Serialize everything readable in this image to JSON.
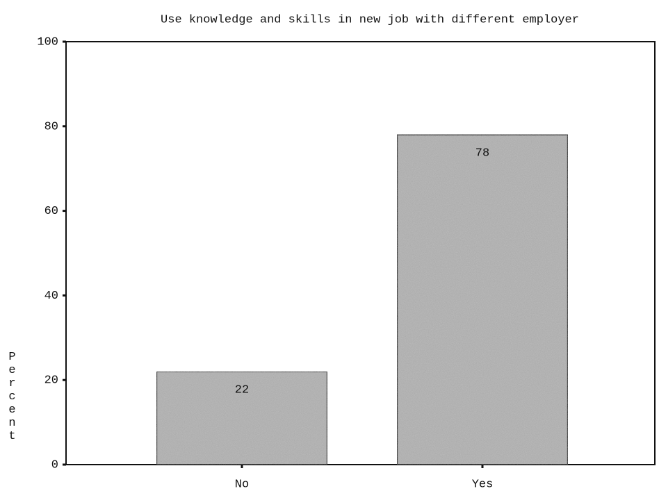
{
  "chart_data": {
    "type": "bar",
    "title": "Use knowledge and skills in new job with different employer",
    "y_label": "Percent",
    "categories": [
      "No",
      "Yes"
    ],
    "values": [
      22,
      78
    ],
    "color": "#bcbcbc",
    "ylim": [
      0,
      100
    ],
    "yticks": [
      0,
      20,
      40,
      60,
      80,
      100
    ],
    "grid": false
  }
}
